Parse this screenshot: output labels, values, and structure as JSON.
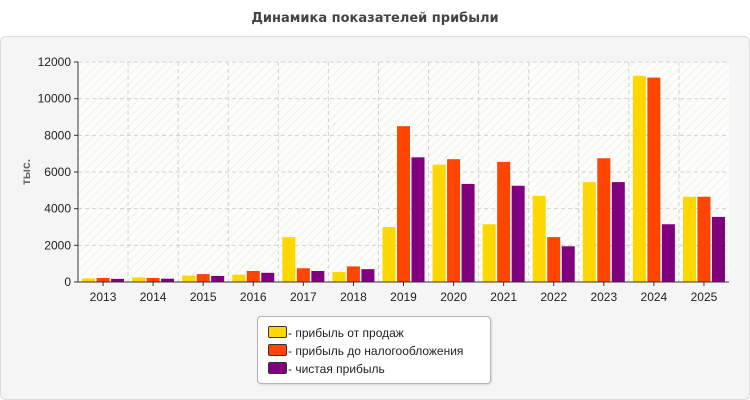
{
  "chart_data": {
    "type": "bar",
    "title": "Динамика показателей прибыли",
    "ylabel": "тыс.",
    "xlabel": "",
    "ylim": [
      0,
      12000
    ],
    "yticks": [
      "0",
      "2000",
      "4000",
      "6000",
      "8000",
      "10000",
      "12000"
    ],
    "grid": true,
    "legend_position": "bottom-center",
    "categories": [
      "2013",
      "2014",
      "2015",
      "2016",
      "2017",
      "2018",
      "2019",
      "2020",
      "2021",
      "2022",
      "2023",
      "2024",
      "2025"
    ],
    "series": [
      {
        "name": "- прибыль от продаж",
        "color": "#FFD700",
        "values": [
          200,
          250,
          350,
          400,
          2450,
          550,
          3000,
          6400,
          3150,
          4700,
          5450,
          11250,
          4650
        ]
      },
      {
        "name": "- прибыль до налогообложения",
        "color": "#FF4500",
        "values": [
          220,
          220,
          430,
          600,
          750,
          850,
          8500,
          6700,
          6550,
          2450,
          6750,
          11150,
          4650
        ]
      },
      {
        "name": "- чистая прибыль",
        "color": "#800080",
        "values": [
          170,
          180,
          330,
          500,
          600,
          700,
          6800,
          5350,
          5250,
          1950,
          5450,
          3150,
          3550
        ]
      }
    ]
  }
}
